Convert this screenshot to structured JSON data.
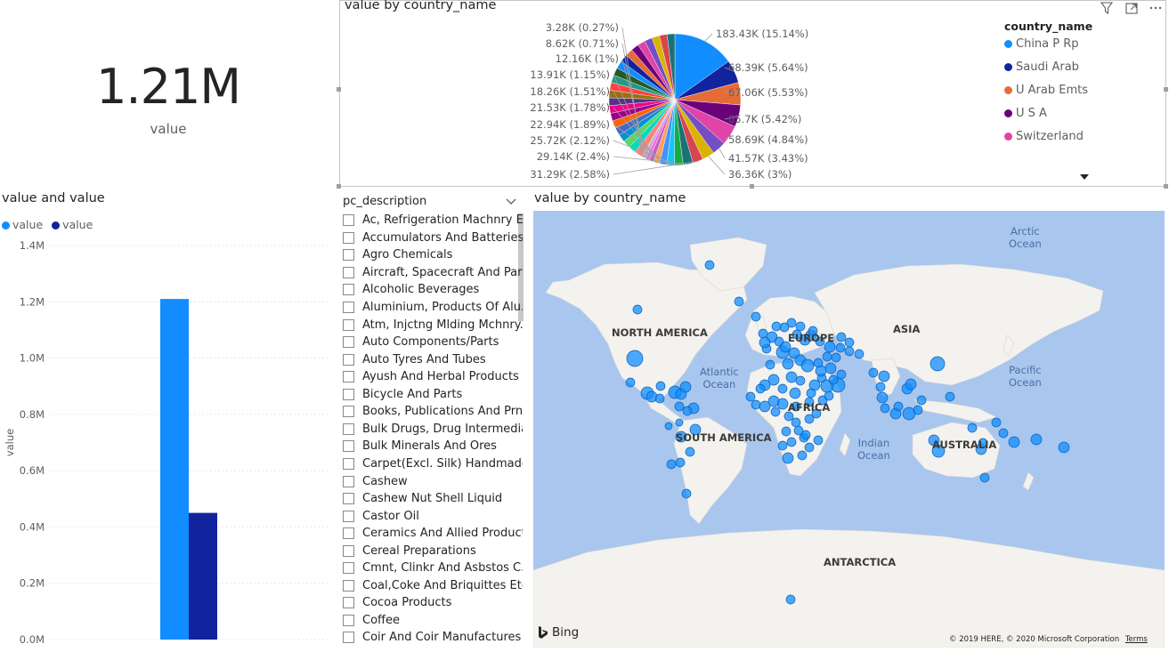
{
  "card": {
    "value": "1.21M",
    "label": "value"
  },
  "pie": {
    "title": "value by country_name",
    "labels": [
      {
        "text": "183.43K (15.14%)",
        "side": "right"
      },
      {
        "text": "68.39K (5.64%)",
        "side": "right"
      },
      {
        "text": "67.06K (5.53%)",
        "side": "right"
      },
      {
        "text": "65.7K (5.42%)",
        "side": "right"
      },
      {
        "text": "58.69K (4.84%)",
        "side": "right"
      },
      {
        "text": "41.57K (3.43%)",
        "side": "right"
      },
      {
        "text": "36.36K (3%)",
        "side": "right"
      },
      {
        "text": "31.29K (2.58%)",
        "side": "left"
      },
      {
        "text": "29.14K (2.4%)",
        "side": "left"
      },
      {
        "text": "25.72K (2.12%)",
        "side": "left"
      },
      {
        "text": "22.94K (1.89%)",
        "side": "left"
      },
      {
        "text": "21.53K (1.78%)",
        "side": "left"
      },
      {
        "text": "18.26K (1.51%)",
        "side": "left"
      },
      {
        "text": "13.91K (1.15%)",
        "side": "left"
      },
      {
        "text": "12.16K (1%)",
        "side": "left"
      },
      {
        "text": "8.62K (0.71%)",
        "side": "left"
      },
      {
        "text": "3.28K (0.27%)",
        "side": "left"
      }
    ],
    "legend_title": "country_name",
    "legend": [
      {
        "name": "China P Rp",
        "color": "#118dff"
      },
      {
        "name": "Saudi Arab",
        "color": "#12239e"
      },
      {
        "name": "U Arab Emts",
        "color": "#e66c37"
      },
      {
        "name": "U S A",
        "color": "#6b007b"
      },
      {
        "name": "Switzerland",
        "color": "#e044a7"
      }
    ]
  },
  "chart_data": {
    "type": "bar",
    "title": "value and value",
    "legend": [
      {
        "name": "value",
        "color": "#118dff"
      },
      {
        "name": "value",
        "color": "#12239e"
      }
    ],
    "ylabel": "value",
    "yticks": [
      "0.0M",
      "0.2M",
      "0.4M",
      "0.6M",
      "0.8M",
      "1.0M",
      "1.2M",
      "1.4M"
    ],
    "ylim": [
      0,
      1.4
    ],
    "series": [
      {
        "name": "value",
        "value": 1.21,
        "color": "#118dff"
      },
      {
        "name": "value",
        "value": 0.45,
        "color": "#12239e"
      }
    ]
  },
  "slicer": {
    "title": "pc_description",
    "items": [
      "Ac, Refrigeration Machnry Etc",
      "Accumulators And Batteries",
      "Agro Chemicals",
      "Aircraft, Spacecraft And Parts",
      "Alcoholic Beverages",
      "Aluminium, Products Of Alu...",
      "Atm, Injctng Mlding Mchnry...",
      "Auto Components/Parts",
      "Auto Tyres And Tubes",
      "Ayush And Herbal Products",
      "Bicycle And Parts",
      "Books, Publications And Prn...",
      "Bulk Drugs, Drug Intermedia...",
      "Bulk Minerals And Ores",
      "Carpet(Excl. Silk) Handmade",
      "Cashew",
      "Cashew Nut Shell Liquid",
      "Castor Oil",
      "Ceramics And Allied Products",
      "Cereal Preparations",
      "Cmnt, Clinkr And Asbstos C...",
      "Coal,Coke And Briquittes Etc",
      "Cocoa Products",
      "Coffee",
      "Coir And Coir Manufactures"
    ]
  },
  "map": {
    "title": "value by country_name",
    "labels": {
      "north_america": "NORTH AMERICA",
      "south_america": "SOUTH AMERICA",
      "europe": "EUROPE",
      "africa": "AFRICA",
      "asia": "ASIA",
      "australia": "AUSTRALIA",
      "antarctica": "ANTARCTICA",
      "arctic": "Arctic",
      "arctic2": "Ocean",
      "atlantic": "Atlantic",
      "atlantic2": "Ocean",
      "indian": "Indian",
      "indian2": "Ocean",
      "pacific": "Pacific",
      "pacific2": "Ocean"
    },
    "bing": "Bing",
    "copyright": "© 2019 HERE, © 2020 Microsoft Corporation",
    "terms": "Terms",
    "bubble_color": "#118dff"
  }
}
